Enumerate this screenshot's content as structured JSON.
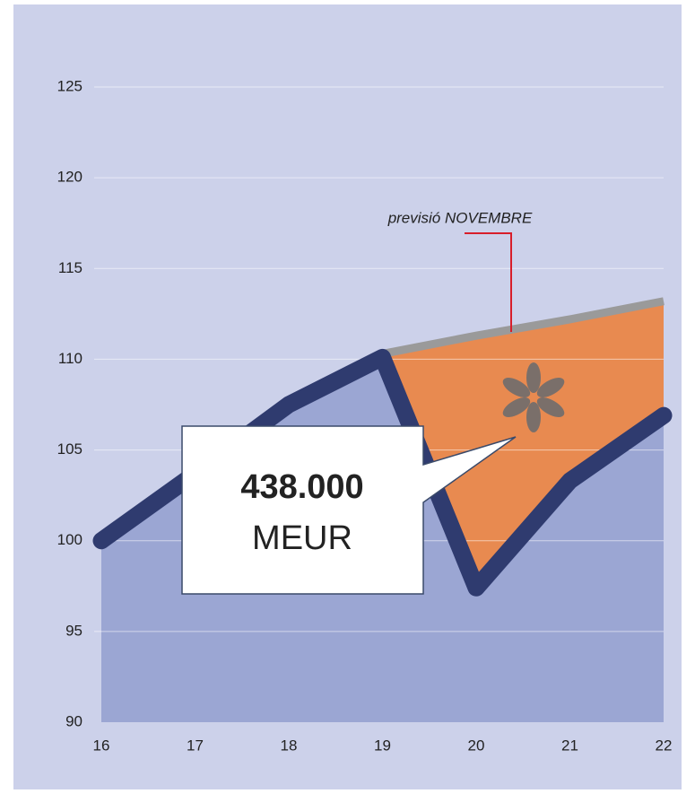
{
  "chart_data": {
    "type": "line",
    "x": [
      16,
      17,
      18,
      19,
      20,
      21,
      22
    ],
    "xlim": [
      16,
      22
    ],
    "xticks": [
      16,
      17,
      18,
      19,
      20,
      21,
      22
    ],
    "ylim": [
      90,
      125
    ],
    "yticks": [
      90,
      95,
      100,
      105,
      110,
      115,
      120,
      125
    ],
    "grid": true,
    "series": [
      {
        "color": "#2f3b6f",
        "fill": "#9ba6d3",
        "values": [
          100,
          103.7,
          107.5,
          110.1,
          97.4,
          103.3,
          106.9
        ]
      },
      {
        "color": "#9a9a9a",
        "fill": "#e88a50",
        "values": [
          null,
          null,
          null,
          110.1,
          111.1,
          112,
          113
        ]
      }
    ],
    "annotations": [
      {
        "text": "previsió NOVEMBRE"
      }
    ],
    "callout": {
      "value": "438.000",
      "unit": "MEUR"
    }
  }
}
